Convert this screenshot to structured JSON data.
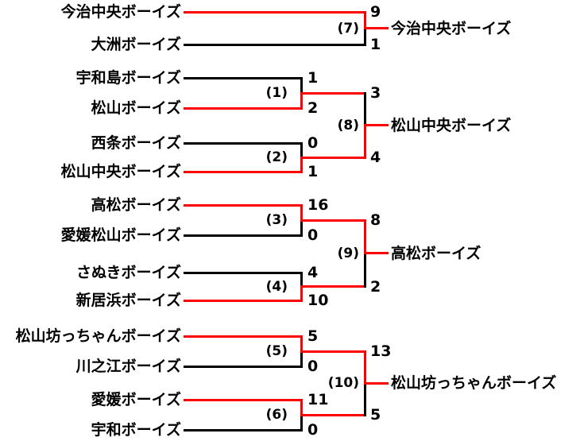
{
  "diagram_type": "tournament-bracket",
  "colors": {
    "winner_line": "#ff0000",
    "loser_line": "#000000",
    "text": "#000000",
    "background": "#ffffff"
  },
  "teams": [
    "今治中央ボーイズ",
    "大洲ボーイズ",
    "宇和島ボーイズ",
    "松山ボーイズ",
    "西条ボーイズ",
    "松山中央ボーイズ",
    "高松ボーイズ",
    "愛媛松山ボーイズ",
    "さぬきボーイズ",
    "新居浜ボーイズ",
    "松山坊っちゃんボーイズ",
    "川之江ボーイズ",
    "愛媛ボーイズ",
    "宇和ボーイズ"
  ],
  "games": [
    {
      "label": "(1)",
      "round": 1,
      "top": {
        "name": "宇和島ボーイズ",
        "score": "1",
        "winner": false
      },
      "bottom": {
        "name": "松山ボーイズ",
        "score": "2",
        "winner": true
      },
      "winner_name": "松山ボーイズ"
    },
    {
      "label": "(2)",
      "round": 1,
      "top": {
        "name": "西条ボーイズ",
        "score": "0",
        "winner": false
      },
      "bottom": {
        "name": "松山中央ボーイズ",
        "score": "1",
        "winner": true
      },
      "winner_name": "松山中央ボーイズ"
    },
    {
      "label": "(3)",
      "round": 1,
      "top": {
        "name": "高松ボーイズ",
        "score": "16",
        "winner": true
      },
      "bottom": {
        "name": "愛媛松山ボーイズ",
        "score": "0",
        "winner": false
      },
      "winner_name": "高松ボーイズ"
    },
    {
      "label": "(4)",
      "round": 1,
      "top": {
        "name": "さぬきボーイズ",
        "score": "4",
        "winner": false
      },
      "bottom": {
        "name": "新居浜ボーイズ",
        "score": "10",
        "winner": true
      },
      "winner_name": "新居浜ボーイズ"
    },
    {
      "label": "(5)",
      "round": 1,
      "top": {
        "name": "松山坊っちゃんボーイズ",
        "score": "5",
        "winner": true
      },
      "bottom": {
        "name": "川之江ボーイズ",
        "score": "0",
        "winner": false
      },
      "winner_name": "松山坊っちゃんボーイズ"
    },
    {
      "label": "(6)",
      "round": 1,
      "top": {
        "name": "愛媛ボーイズ",
        "score": "11",
        "winner": true
      },
      "bottom": {
        "name": "宇和ボーイズ",
        "score": "0",
        "winner": false
      },
      "winner_name": "愛媛ボーイズ"
    },
    {
      "label": "(7)",
      "round": 2,
      "top": {
        "name": "今治中央ボーイズ",
        "score": "9",
        "winner": true
      },
      "bottom": {
        "name": "大洲ボーイズ",
        "score": "1",
        "winner": false
      },
      "winner_name": "今治中央ボーイズ"
    },
    {
      "label": "(8)",
      "round": 2,
      "top": {
        "name": "松山ボーイズ",
        "score": "3",
        "winner": false
      },
      "bottom": {
        "name": "松山中央ボーイズ",
        "score": "4",
        "winner": true
      },
      "winner_name": "松山中央ボーイズ"
    },
    {
      "label": "(9)",
      "round": 2,
      "top": {
        "name": "高松ボーイズ",
        "score": "8",
        "winner": true
      },
      "bottom": {
        "name": "新居浜ボーイズ",
        "score": "2",
        "winner": false
      },
      "winner_name": "高松ボーイズ"
    },
    {
      "label": "(10)",
      "round": 2,
      "top": {
        "name": "松山坊っちゃんボーイズ",
        "score": "13",
        "winner": true
      },
      "bottom": {
        "name": "愛媛ボーイズ",
        "score": "5",
        "winner": false
      },
      "winner_name": "松山坊っちゃんボーイズ"
    }
  ]
}
